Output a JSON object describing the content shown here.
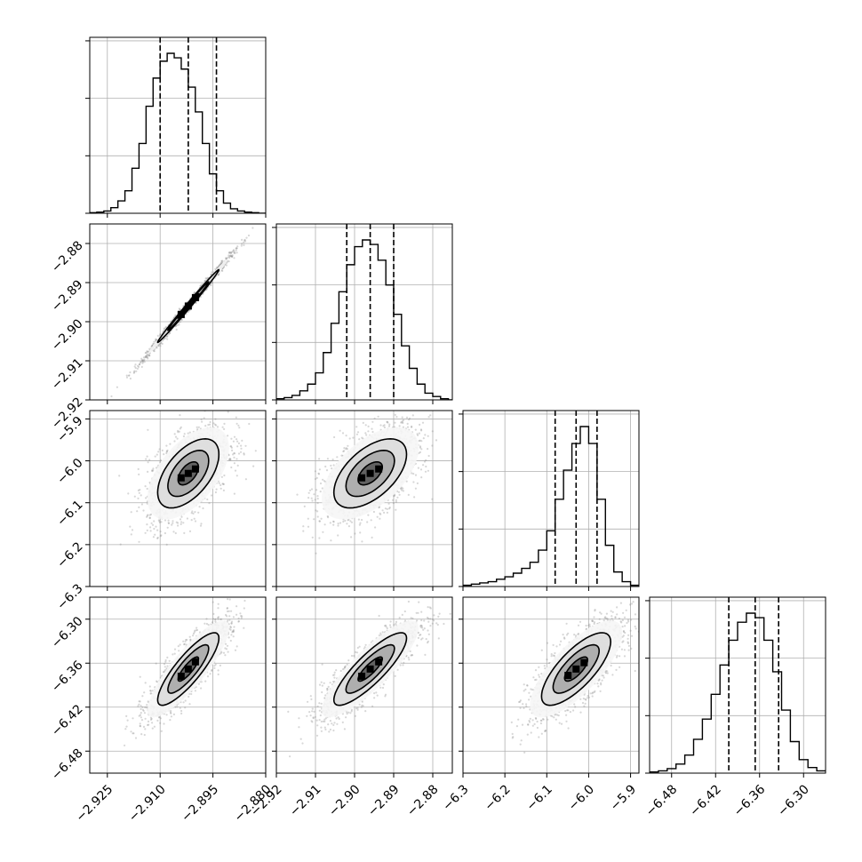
{
  "chart_data": {
    "type": "corner",
    "parameters": [
      {
        "index": 0,
        "range": [
          -2.93,
          -2.88
        ],
        "ticks": [
          -2.925,
          -2.91,
          -2.895,
          -2.88
        ],
        "tick_labels": [
          "−2.925",
          "−2.910",
          "−2.895",
          "−2.880"
        ],
        "quantiles": [
          -2.91,
          -2.902,
          -2.894
        ]
      },
      {
        "index": 1,
        "range": [
          -2.92,
          -2.875
        ],
        "ticks": [
          -2.92,
          -2.91,
          -2.9,
          -2.89,
          -2.88
        ],
        "tick_labels": [
          "−2.92",
          "−2.91",
          "−2.90",
          "−2.89",
          "−2.88"
        ],
        "quantiles": [
          -2.902,
          -2.896,
          -2.89
        ]
      },
      {
        "index": 2,
        "range": [
          -6.3,
          -5.88
        ],
        "ticks": [
          -6.3,
          -6.2,
          -6.1,
          -6.0,
          -5.9
        ],
        "tick_labels": [
          "−6.3",
          "−6.2",
          "−6.1",
          "−6.0",
          "−5.9"
        ],
        "quantiles": [
          -6.08,
          -6.03,
          -5.98
        ]
      },
      {
        "index": 3,
        "range": [
          -6.51,
          -6.27
        ],
        "ticks": [
          -6.48,
          -6.42,
          -6.36,
          -6.3
        ],
        "tick_labels": [
          "−6.48",
          "−6.42",
          "−6.36",
          "−6.30"
        ],
        "quantiles": [
          -6.402,
          -6.366,
          -6.334
        ]
      }
    ],
    "histograms": [
      {
        "param": 0,
        "bins": [
          -2.93,
          -2.928,
          -2.926,
          -2.924,
          -2.922,
          -2.92,
          -2.918,
          -2.916,
          -2.914,
          -2.912,
          -2.91,
          -2.908,
          -2.906,
          -2.904,
          -2.902,
          -2.9,
          -2.898,
          -2.896,
          -2.894,
          -2.892,
          -2.89,
          -2.888,
          -2.886,
          -2.884,
          -2.882,
          -2.88
        ],
        "counts": [
          0.5,
          1,
          2,
          5,
          11,
          20,
          40,
          62,
          95,
          120,
          135,
          142,
          138,
          128,
          112,
          90,
          62,
          35,
          20,
          9,
          4,
          2,
          1,
          0.5,
          0
        ]
      },
      {
        "param": 1,
        "bins": [
          -2.92,
          -2.918,
          -2.916,
          -2.914,
          -2.912,
          -2.91,
          -2.908,
          -2.906,
          -2.904,
          -2.902,
          -2.9,
          -2.898,
          -2.896,
          -2.894,
          -2.892,
          -2.89,
          -2.888,
          -2.886,
          -2.884,
          -2.882,
          -2.88,
          -2.878,
          -2.876,
          -2.875
        ],
        "counts": [
          1,
          2,
          4,
          8,
          14,
          24,
          42,
          68,
          96,
          120,
          136,
          142,
          138,
          124,
          102,
          76,
          48,
          28,
          14,
          6,
          3,
          1,
          0
        ]
      },
      {
        "param": 2,
        "bins": [
          -6.3,
          -6.28,
          -6.26,
          -6.24,
          -6.22,
          -6.2,
          -6.18,
          -6.16,
          -6.14,
          -6.12,
          -6.1,
          -6.08,
          -6.06,
          -6.04,
          -6.02,
          -6.0,
          -5.98,
          -5.96,
          -5.94,
          -5.92,
          -5.9,
          -5.88
        ],
        "counts": [
          1,
          2,
          3,
          4,
          6,
          8,
          11,
          15,
          20,
          30,
          46,
          72,
          96,
          118,
          132,
          118,
          72,
          34,
          12,
          4,
          1
        ]
      },
      {
        "param": 3,
        "bins": [
          -6.51,
          -6.498,
          -6.486,
          -6.474,
          -6.462,
          -6.45,
          -6.438,
          -6.426,
          -6.414,
          -6.402,
          -6.39,
          -6.378,
          -6.366,
          -6.354,
          -6.342,
          -6.33,
          -6.318,
          -6.306,
          -6.294,
          -6.282,
          -6.27
        ],
        "counts": [
          1,
          2,
          4,
          8,
          16,
          30,
          48,
          70,
          96,
          118,
          134,
          142,
          138,
          118,
          90,
          56,
          28,
          12,
          5,
          2
        ]
      }
    ],
    "pairs": [
      {
        "x_param": 0,
        "y_param": 1,
        "center": [
          -2.902,
          -2.896
        ],
        "sigma": [
          0.0058,
          0.0062
        ],
        "correlation": 0.995
      },
      {
        "x_param": 0,
        "y_param": 2,
        "center": [
          -2.902,
          -6.03
        ],
        "sigma": [
          0.0058,
          0.055
        ],
        "correlation": 0.55
      },
      {
        "x_param": 1,
        "y_param": 2,
        "center": [
          -2.896,
          -6.03
        ],
        "sigma": [
          0.0062,
          0.055
        ],
        "correlation": 0.55
      },
      {
        "x_param": 0,
        "y_param": 3,
        "center": [
          -2.902,
          -6.368
        ],
        "sigma": [
          0.0058,
          0.033
        ],
        "correlation": 0.85
      },
      {
        "x_param": 1,
        "y_param": 3,
        "center": [
          -2.896,
          -6.368
        ],
        "sigma": [
          0.0062,
          0.033
        ],
        "correlation": 0.85
      },
      {
        "x_param": 2,
        "y_param": 3,
        "center": [
          -6.03,
          -6.368
        ],
        "sigma": [
          0.055,
          0.033
        ],
        "correlation": 0.75
      }
    ],
    "grid": true,
    "contour_levels": [
      0.5,
      1.0,
      1.5,
      2.0
    ],
    "colors": {
      "line": "#000000",
      "grid": "#b0b0b0",
      "points": "#8c8c8c"
    }
  }
}
